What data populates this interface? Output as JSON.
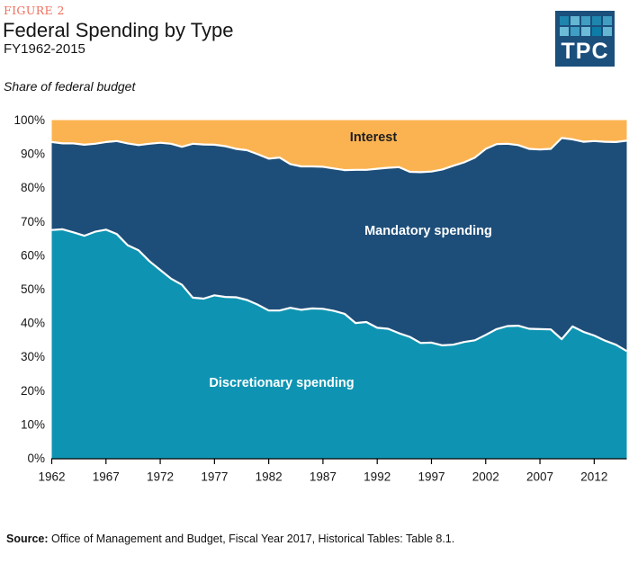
{
  "header": {
    "figure_label": "FIGURE 2",
    "title": "Federal Spending by Type",
    "subtitle": "FY1962-2015",
    "logo_text": "TPC",
    "logo_bg": "#1B4F7C",
    "logo_squares": [
      "#1E85AD",
      "#64B6D3",
      "#3F9EC2",
      "#1E85AD",
      "#3F9EC2",
      "#6CBBD7",
      "#3F9EC2",
      "#6CBBD7",
      "#0D7CA7",
      "#64B6D3"
    ]
  },
  "axis_note": "Share of federal budget",
  "source": {
    "label": "Source:",
    "text": " Office of Management and Budget, Fiscal Year 2017, Historical Tables: Table 8.1."
  },
  "colors": {
    "discretionary": "#0E94B2",
    "mandatory": "#1D4E79",
    "interest": "#FBB351",
    "boundary_stroke": "#FFFFFF",
    "figure_label": "#EF6E5C",
    "text": "#161616"
  },
  "chart_data": {
    "type": "area",
    "stacked": true,
    "title": "Federal Spending by Type",
    "subtitle": "FY1962-2015",
    "ylabel": "Share of federal budget",
    "xlabel": "",
    "ylim": [
      0,
      100
    ],
    "grid": false,
    "legend": "inline-area-labels",
    "y_ticks": [
      0,
      10,
      20,
      30,
      40,
      50,
      60,
      70,
      80,
      90,
      100
    ],
    "y_tick_suffix": "%",
    "x_ticks": [
      1962,
      1967,
      1972,
      1977,
      1982,
      1987,
      1992,
      1997,
      2002,
      2007,
      2012
    ],
    "x_range": [
      1962,
      2015
    ],
    "x": [
      1962,
      1963,
      1964,
      1965,
      1966,
      1967,
      1968,
      1969,
      1970,
      1971,
      1972,
      1973,
      1974,
      1975,
      1976,
      1977,
      1978,
      1979,
      1980,
      1981,
      1982,
      1983,
      1984,
      1985,
      1986,
      1987,
      1988,
      1989,
      1990,
      1991,
      1992,
      1993,
      1994,
      1995,
      1996,
      1997,
      1998,
      1999,
      2000,
      2001,
      2002,
      2003,
      2004,
      2005,
      2006,
      2007,
      2008,
      2009,
      2010,
      2011,
      2012,
      2013,
      2014,
      2015
    ],
    "series": [
      {
        "name": "Discretionary spending",
        "color": "#0E94B2",
        "label_color": "#FFFFFF",
        "values": [
          67.5,
          67.7,
          66.8,
          65.8,
          67.0,
          67.6,
          66.3,
          63.0,
          61.5,
          58.3,
          55.7,
          53.1,
          51.3,
          47.5,
          47.2,
          48.2,
          47.7,
          47.6,
          46.8,
          45.4,
          43.7,
          43.7,
          44.5,
          43.9,
          44.3,
          44.2,
          43.6,
          42.7,
          40.0,
          40.3,
          38.6,
          38.3,
          37.0,
          35.9,
          34.1,
          34.2,
          33.4,
          33.6,
          34.4,
          34.9,
          36.5,
          38.2,
          39.1,
          39.2,
          38.3,
          38.2,
          38.1,
          35.2,
          39.0,
          37.4,
          36.3,
          34.8,
          33.6,
          31.7
        ]
      },
      {
        "name": "Mandatory spending",
        "color": "#1D4E79",
        "label_color": "#FFFFFF",
        "values": [
          26.0,
          25.4,
          26.3,
          26.9,
          26.0,
          25.9,
          27.5,
          30.1,
          31.1,
          34.7,
          37.6,
          39.9,
          40.8,
          45.5,
          45.6,
          44.5,
          44.6,
          43.9,
          44.3,
          44.5,
          44.9,
          45.2,
          42.5,
          42.4,
          42.0,
          42.0,
          42.1,
          42.5,
          45.3,
          45.0,
          47.0,
          47.6,
          49.1,
          48.8,
          50.5,
          50.6,
          52.0,
          52.9,
          53.1,
          54.0,
          55.0,
          54.7,
          53.9,
          53.4,
          53.2,
          53.1,
          53.4,
          59.5,
          55.3,
          56.2,
          57.5,
          58.8,
          59.9,
          62.2
        ]
      },
      {
        "name": "Interest",
        "color": "#FBB351",
        "label_color": "#1E1E1E",
        "values": [
          6.5,
          6.9,
          6.9,
          7.3,
          7.0,
          6.5,
          6.2,
          6.9,
          7.4,
          7.0,
          6.7,
          7.0,
          7.9,
          7.0,
          7.2,
          7.3,
          7.7,
          8.5,
          8.9,
          10.1,
          11.4,
          11.1,
          13.0,
          13.7,
          13.7,
          13.8,
          14.3,
          14.8,
          14.7,
          14.7,
          14.4,
          14.1,
          13.9,
          15.3,
          15.4,
          15.2,
          14.6,
          13.5,
          12.5,
          11.1,
          8.5,
          7.1,
          7.0,
          7.4,
          8.5,
          8.7,
          8.5,
          5.3,
          5.7,
          6.4,
          6.2,
          6.4,
          6.5,
          6.1
        ]
      }
    ]
  }
}
